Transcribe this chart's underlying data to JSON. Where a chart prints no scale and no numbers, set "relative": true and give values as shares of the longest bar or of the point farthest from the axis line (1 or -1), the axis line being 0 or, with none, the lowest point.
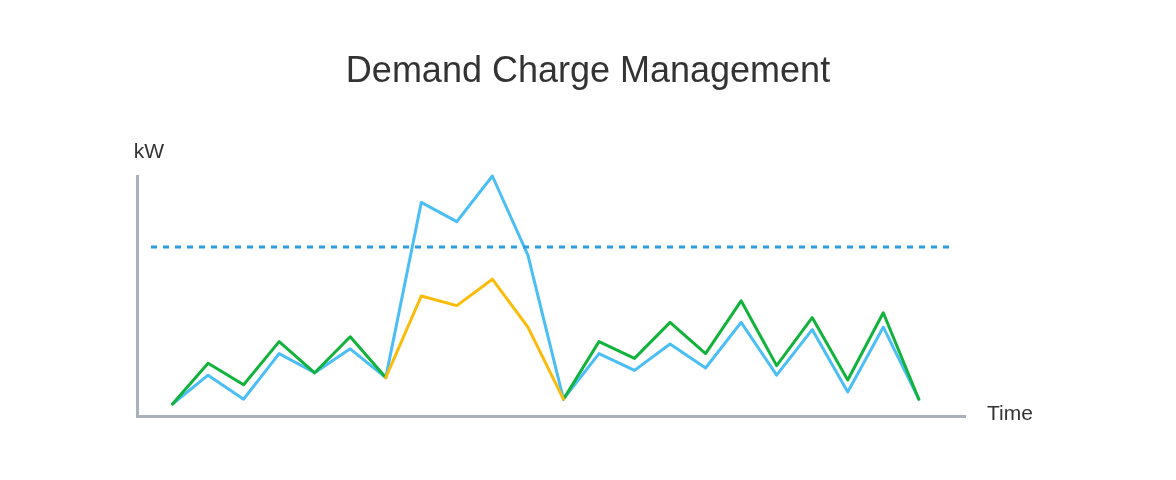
{
  "chart_data": {
    "type": "line",
    "title": "Demand Charge Management",
    "xlabel": "Time",
    "ylabel": "kW",
    "relative": true,
    "marker": "none",
    "line_style": "solid",
    "categories": [
      null,
      null,
      null,
      null,
      null,
      null,
      null,
      null,
      null,
      null,
      null,
      null,
      null,
      null,
      null,
      null,
      null,
      null,
      null,
      null,
      null,
      null
    ],
    "series": [
      {
        "color": "#fbbb0a",
        "values": [
          null,
          null,
          null,
          null,
          null,
          null,
          0.16,
          0.5,
          0.46,
          0.57,
          0.37,
          0.07,
          null,
          null,
          null,
          null,
          null,
          null,
          null,
          null,
          null,
          null
        ]
      },
      {
        "color": "#11b33c",
        "values": [
          0.05,
          0.22,
          0.13,
          0.31,
          0.18,
          0.33,
          0.16,
          null,
          null,
          null,
          null,
          0.07,
          0.31,
          0.24,
          0.39,
          0.26,
          0.48,
          0.21,
          0.41,
          0.15,
          0.43,
          0.07
        ]
      },
      {
        "color": "#4bbef5",
        "values": [
          0.05,
          0.17,
          0.07,
          0.26,
          0.18,
          0.28,
          0.16,
          0.89,
          0.81,
          1,
          0.67,
          0.07,
          0.26,
          0.19,
          0.3,
          0.2,
          0.39,
          0.17,
          0.36,
          0.1,
          0.37,
          0.07
        ]
      }
    ],
    "ref_lines": [
      {
        "axis": "y",
        "value": 0.704,
        "color": "#2a9ee0",
        "line_style": "dashed"
      }
    ]
  }
}
